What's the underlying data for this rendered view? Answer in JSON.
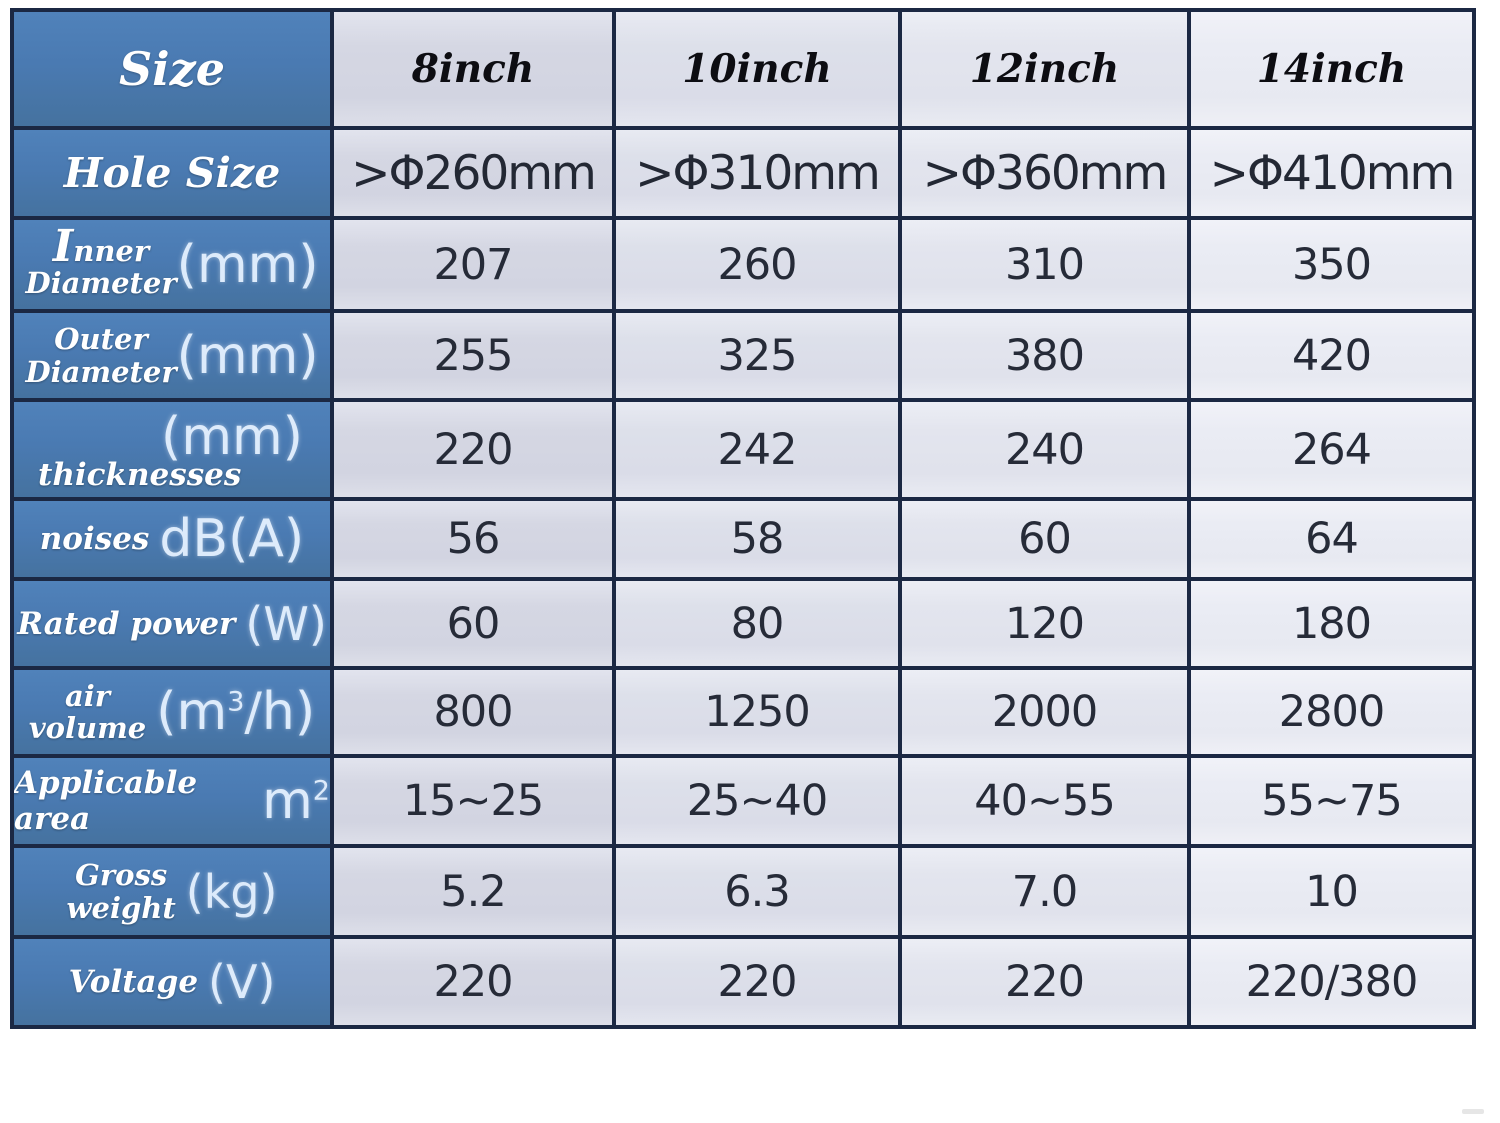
{
  "table": {
    "corner": "Size",
    "columns": [
      "8inch",
      "10inch",
      "12inch",
      "14inch"
    ],
    "rows": [
      {
        "label": "Hole Size",
        "values": [
          ">Φ260mm",
          ">Φ310mm",
          ">Φ360mm",
          ">Φ410mm"
        ]
      },
      {
        "l1": "Inner",
        "l2": "Diameter",
        "unit": "(mm)",
        "values": [
          "207",
          "260",
          "310",
          "350"
        ]
      },
      {
        "l1": "Outer",
        "l2": "Diameter",
        "unit": "(mm)",
        "values": [
          "255",
          "325",
          "380",
          "420"
        ]
      },
      {
        "label": "thicknesses",
        "unit": "(mm)",
        "values": [
          "220",
          "242",
          "240",
          "264"
        ]
      },
      {
        "label": "noises",
        "unit": "dB(A)",
        "values": [
          "56",
          "58",
          "60",
          "64"
        ]
      },
      {
        "label": "Rated power",
        "unit": "(W)",
        "values": [
          "60",
          "80",
          "120",
          "180"
        ]
      },
      {
        "l1": "air",
        "l2": "volume",
        "unit_pre": "(m",
        "unit_sup": "3",
        "unit_post": "/h)",
        "values": [
          "800",
          "1250",
          "2000",
          "2800"
        ]
      },
      {
        "label": "Applicable area",
        "unit_pre": "m",
        "unit_sup": "2",
        "unit_post": "",
        "values": [
          "15~25",
          "25~40",
          "40~55",
          "55~75"
        ]
      },
      {
        "l1": "Gross",
        "l2": "weight",
        "unit": "(kg)",
        "values": [
          "5.2",
          "6.3",
          "7.0",
          "10"
        ]
      },
      {
        "label": "Voltage",
        "unit": "(V)",
        "values": [
          "220",
          "220",
          "220",
          "220/380"
        ]
      }
    ]
  },
  "colors": {
    "label_blue": "#4a7ab2",
    "grid_line": "#1b2843",
    "column_shades": [
      "#d5d7e3",
      "#dde0ea",
      "#e3e5ee",
      "#eaecf4"
    ],
    "value_text": "#262b38"
  }
}
